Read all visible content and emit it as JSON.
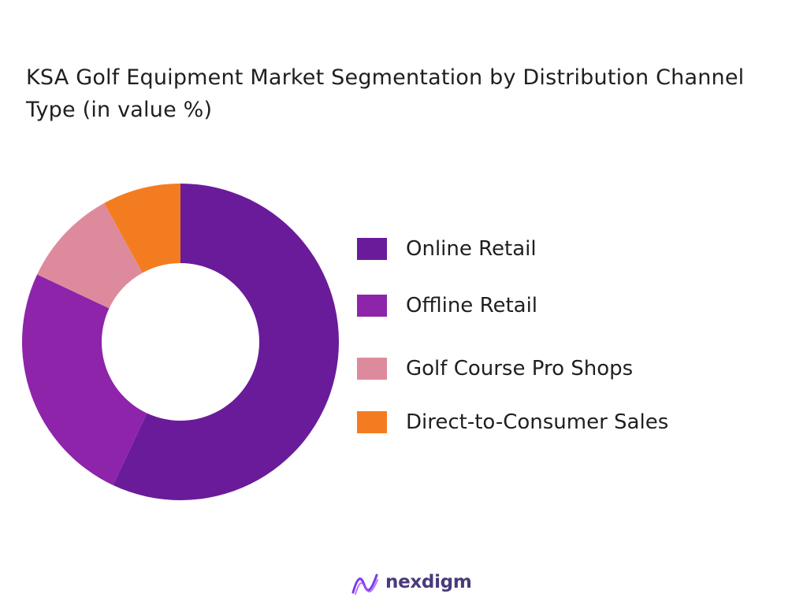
{
  "chart_data": {
    "type": "pie",
    "title": "KSA  Golf Equipment Market Segmentation by Distribution Channel Type  (in value %)",
    "series": [
      {
        "name": "Online Retail",
        "value": 57,
        "color": "#6a1b9a"
      },
      {
        "name": "Offline Retail",
        "value": 25,
        "color": "#8e24aa"
      },
      {
        "name": "Golf Course Pro Shops",
        "value": 10,
        "color": "#de8a9d"
      },
      {
        "name": "Direct-to-Consumer Sales",
        "value": 8,
        "color": "#f47c20"
      }
    ],
    "legend_position": "right",
    "donut": true
  },
  "brand": {
    "name": "nexdigm"
  }
}
